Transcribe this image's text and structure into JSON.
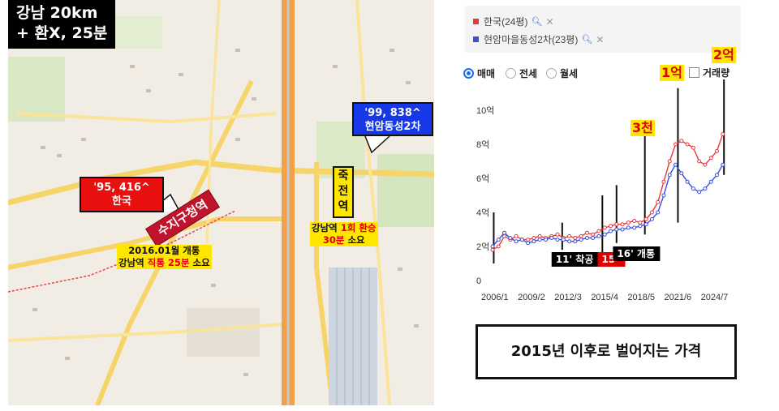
{
  "map": {
    "title_line1": "강남 20km",
    "title_line2": "+ 환X, 25분",
    "callout_red_line1": "'95, 416^",
    "callout_red_line2": "한국",
    "callout_blue_line1": "'99, 838^",
    "callout_blue_line2": "현암동성2차",
    "station_sign": "수지구청역",
    "jukjeon_chars": [
      "죽",
      "전",
      "역"
    ],
    "note_gangnam_line1_a": "강남역 ",
    "note_gangnam_line1_b": "1회 환승",
    "note_gangnam_line2_a": "30분",
    "note_gangnam_line2_b": " 소요",
    "note_suji_line1": "2016.01월 개통",
    "note_suji_line2_a": "강남역 ",
    "note_suji_line2_b": "직통 25분",
    "note_suji_line2_c": " 소요"
  },
  "legend": {
    "items": [
      {
        "label": "한국(24평)",
        "color": "#e8383d"
      },
      {
        "label": "현암마을동성2차(23평)",
        "color": "#3b4fe0"
      }
    ]
  },
  "controls": {
    "radios": [
      {
        "label": "매매",
        "selected": true
      },
      {
        "label": "전세",
        "selected": false
      },
      {
        "label": "월세",
        "selected": false
      }
    ],
    "checkbox_label": "거래량"
  },
  "annotations": {
    "label_1eok": "1억",
    "label_2eok": "2억",
    "label_3cheon": "3천",
    "label_11": "11' 착공",
    "label_15": "15'",
    "label_16": "16' 개통"
  },
  "summary": "2015년 이후로 벌어지는 가격",
  "chart_data": {
    "type": "line",
    "title": "",
    "xlabel": "",
    "ylabel": "",
    "x_tick_labels": [
      "2006/1",
      "2009/2",
      "2012/3",
      "2015/4",
      "2018/5",
      "2021/6",
      "2024/7"
    ],
    "y_tick_labels": [
      "0",
      "2억",
      "4억",
      "6억",
      "8억",
      "10억"
    ],
    "ylim": [
      0,
      10
    ],
    "xlim": [
      2006.0,
      2026.0
    ],
    "grid": false,
    "legend": "top-left",
    "series": [
      {
        "name": "한국(24평)",
        "color": "#e8383d",
        "x": [
          2006.0,
          2006.5,
          2007.0,
          2007.5,
          2008.0,
          2008.5,
          2009.0,
          2009.5,
          2010.0,
          2010.5,
          2011.0,
          2011.5,
          2012.0,
          2012.5,
          2013.0,
          2013.5,
          2014.0,
          2014.5,
          2015.0,
          2015.5,
          2016.0,
          2016.5,
          2017.0,
          2017.5,
          2018.0,
          2018.5,
          2019.0,
          2019.5,
          2020.0,
          2020.5,
          2021.0,
          2021.5,
          2022.0,
          2022.5,
          2023.0,
          2023.5,
          2024.0,
          2024.5,
          2025.0,
          2025.5
        ],
        "y": [
          1.8,
          2.0,
          2.6,
          2.4,
          2.6,
          2.4,
          2.4,
          2.5,
          2.6,
          2.5,
          2.6,
          2.7,
          2.5,
          2.6,
          2.5,
          2.6,
          2.8,
          2.7,
          2.9,
          3.1,
          3.2,
          3.3,
          3.3,
          3.4,
          3.5,
          3.4,
          3.6,
          4.0,
          4.6,
          5.8,
          7.0,
          8.0,
          8.2,
          8.0,
          7.8,
          7.0,
          6.8,
          7.2,
          7.6,
          8.6
        ]
      },
      {
        "name": "현암마을동성2차(23평)",
        "color": "#3b4fe0",
        "x": [
          2006.0,
          2006.5,
          2007.0,
          2007.5,
          2008.0,
          2008.5,
          2009.0,
          2009.5,
          2010.0,
          2010.5,
          2011.0,
          2011.5,
          2012.0,
          2012.5,
          2013.0,
          2013.5,
          2014.0,
          2014.5,
          2015.0,
          2015.5,
          2016.0,
          2016.5,
          2017.0,
          2017.5,
          2018.0,
          2018.5,
          2019.0,
          2019.5,
          2020.0,
          2020.5,
          2021.0,
          2021.5,
          2022.0,
          2022.5,
          2023.0,
          2023.5,
          2024.0,
          2024.5,
          2025.0,
          2025.5
        ],
        "y": [
          2.0,
          2.4,
          2.8,
          2.5,
          2.3,
          2.4,
          2.2,
          2.3,
          2.4,
          2.4,
          2.5,
          2.4,
          2.4,
          2.3,
          2.3,
          2.4,
          2.5,
          2.5,
          2.6,
          2.7,
          2.9,
          3.0,
          3.0,
          3.1,
          3.1,
          3.2,
          3.3,
          3.6,
          4.0,
          5.0,
          6.2,
          6.8,
          6.3,
          5.8,
          5.4,
          5.2,
          5.4,
          5.8,
          6.2,
          6.8
        ]
      }
    ]
  }
}
